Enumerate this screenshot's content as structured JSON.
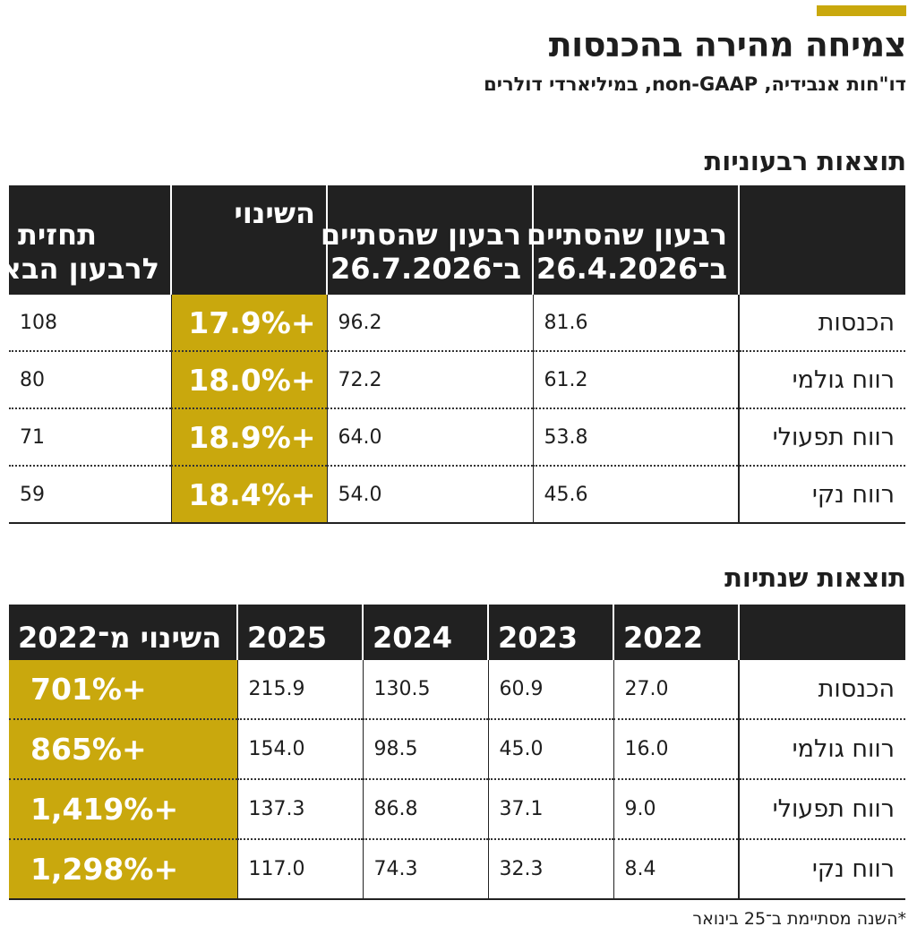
{
  "title": "צמיחה מהירה בהכנסות",
  "subtitle": "דו\"חות אנבידיה, non-GAAP, במיליארדי דולרים",
  "quarterly": {
    "section_title": "תוצאות רבעוניות",
    "columns": [
      "",
      "רבעון שהסתיים ב־26.4.2026",
      "רבעון שהסתיים ב־26.7.2026",
      "השינוי",
      "תחזית לרבעון הבא"
    ],
    "header_lines": {
      "col1_line1": "רבעון שהסתיים",
      "col1_line2": "ב־26.4.2026",
      "col2_line1": "רבעון שהסתיים",
      "col2_line2": "ב־26.7.2026",
      "col3_line1": "השינוי",
      "col4_line1": "תחזית",
      "col4_line2": "לרבעון הבא"
    },
    "rows": [
      {
        "label": "הכנסות",
        "q1": "81.6",
        "q2": "96.2",
        "change": "+17.9%",
        "forecast": "108"
      },
      {
        "label": "רווח גולמי",
        "q1": "61.2",
        "q2": "72.2",
        "change": "+18.0%",
        "forecast": "80"
      },
      {
        "label": "רווח תפעולי",
        "q1": "53.8",
        "q2": "64.0",
        "change": "+18.9%",
        "forecast": "71"
      },
      {
        "label": "רווח נקי",
        "q1": "45.6",
        "q2": "54.0",
        "change": "+18.4%",
        "forecast": "59"
      }
    ]
  },
  "annual": {
    "section_title": "תוצאות שנתיות",
    "columns": [
      "",
      "2022",
      "2023",
      "2024",
      "2025",
      "השינוי מ־2022"
    ],
    "rows": [
      {
        "label": "הכנסות",
        "y2022": "27.0",
        "y2023": "60.9",
        "y2024": "130.5",
        "y2025": "215.9",
        "change": "+701%"
      },
      {
        "label": "רווח גולמי",
        "y2022": "16.0",
        "y2023": "45.0",
        "y2024": "98.5",
        "y2025": "154.0",
        "change": "+865%"
      },
      {
        "label": "רווח תפעולי",
        "y2022": "9.0",
        "y2023": "37.1",
        "y2024": "86.8",
        "y2025": "137.3",
        "change": "+1,419%"
      },
      {
        "label": "רווח נקי",
        "y2022": "8.4",
        "y2023": "32.3",
        "y2024": "74.3",
        "y2025": "117.0",
        "change": "+1,298%"
      }
    ]
  },
  "footnote": "*השנה מסתיימת ב־25 בינואר",
  "colors": {
    "accent": "#c9a80d",
    "header_bg": "#212121",
    "text": "#1e1e1e"
  }
}
